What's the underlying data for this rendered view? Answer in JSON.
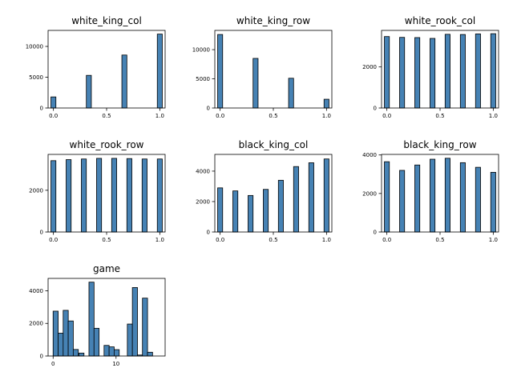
{
  "chart_data": [
    {
      "type": "bar",
      "title": "white_king_col",
      "xlim": [
        -0.05,
        1.05
      ],
      "ylim": [
        0,
        12600
      ],
      "xticks": [
        0.0,
        0.5,
        1.0
      ],
      "xtick_labels": [
        "0.0",
        "0.5",
        "1.0"
      ],
      "yticks": [
        0,
        5000,
        10000
      ],
      "ytick_labels": [
        "0",
        "5000",
        "10000"
      ],
      "bin_width": 0.047,
      "bars": [
        {
          "x": 0.0,
          "value": 1800
        },
        {
          "x": 0.333,
          "value": 5300
        },
        {
          "x": 0.667,
          "value": 8600
        },
        {
          "x": 1.0,
          "value": 12000
        }
      ]
    },
    {
      "type": "bar",
      "title": "white_king_row",
      "xlim": [
        -0.05,
        1.05
      ],
      "ylim": [
        0,
        13300
      ],
      "xticks": [
        0.0,
        0.5,
        1.0
      ],
      "xtick_labels": [
        "0.0",
        "0.5",
        "1.0"
      ],
      "yticks": [
        0,
        5000,
        10000
      ],
      "ytick_labels": [
        "0",
        "5000",
        "10000"
      ],
      "bin_width": 0.047,
      "bars": [
        {
          "x": 0.0,
          "value": 12600
        },
        {
          "x": 0.333,
          "value": 8500
        },
        {
          "x": 0.667,
          "value": 5100
        },
        {
          "x": 1.0,
          "value": 1500
        }
      ]
    },
    {
      "type": "bar",
      "title": "white_rook_col",
      "xlim": [
        -0.05,
        1.05
      ],
      "ylim": [
        0,
        3780
      ],
      "xticks": [
        0.0,
        0.5,
        1.0
      ],
      "xtick_labels": [
        "0.0",
        "0.5",
        "1.0"
      ],
      "yticks": [
        0,
        2000
      ],
      "ytick_labels": [
        "0",
        "2000"
      ],
      "bin_width": 0.047,
      "bars": [
        {
          "x": 0.0,
          "value": 3480
        },
        {
          "x": 0.143,
          "value": 3440
        },
        {
          "x": 0.286,
          "value": 3430
        },
        {
          "x": 0.429,
          "value": 3390
        },
        {
          "x": 0.571,
          "value": 3590
        },
        {
          "x": 0.714,
          "value": 3580
        },
        {
          "x": 0.857,
          "value": 3610
        },
        {
          "x": 1.0,
          "value": 3620
        }
      ]
    },
    {
      "type": "bar",
      "title": "white_rook_row",
      "xlim": [
        -0.05,
        1.05
      ],
      "ylim": [
        0,
        3720
      ],
      "xticks": [
        0.0,
        0.5,
        1.0
      ],
      "xtick_labels": [
        "0.0",
        "0.5",
        "1.0"
      ],
      "yticks": [
        0,
        2000
      ],
      "ytick_labels": [
        "0",
        "2000"
      ],
      "bin_width": 0.047,
      "bars": [
        {
          "x": 0.0,
          "value": 3420
        },
        {
          "x": 0.143,
          "value": 3470
        },
        {
          "x": 0.286,
          "value": 3500
        },
        {
          "x": 0.429,
          "value": 3530
        },
        {
          "x": 0.571,
          "value": 3530
        },
        {
          "x": 0.714,
          "value": 3520
        },
        {
          "x": 0.857,
          "value": 3500
        },
        {
          "x": 1.0,
          "value": 3500
        }
      ]
    },
    {
      "type": "bar",
      "title": "black_king_col",
      "xlim": [
        -0.05,
        1.05
      ],
      "ylim": [
        0,
        5100
      ],
      "xticks": [
        0.0,
        0.5,
        1.0
      ],
      "xtick_labels": [
        "0.0",
        "0.5",
        "1.0"
      ],
      "yticks": [
        0,
        2000,
        4000
      ],
      "ytick_labels": [
        "0",
        "2000",
        "4000"
      ],
      "bin_width": 0.047,
      "bars": [
        {
          "x": 0.0,
          "value": 2900
        },
        {
          "x": 0.143,
          "value": 2700
        },
        {
          "x": 0.286,
          "value": 2400
        },
        {
          "x": 0.429,
          "value": 2800
        },
        {
          "x": 0.571,
          "value": 3400
        },
        {
          "x": 0.714,
          "value": 4300
        },
        {
          "x": 0.857,
          "value": 4550
        },
        {
          "x": 1.0,
          "value": 4800
        }
      ]
    },
    {
      "type": "bar",
      "title": "black_king_row",
      "xlim": [
        -0.05,
        1.05
      ],
      "ylim": [
        0,
        4030
      ],
      "xticks": [
        0.0,
        0.5,
        1.0
      ],
      "xtick_labels": [
        "0.0",
        "0.5",
        "1.0"
      ],
      "yticks": [
        0,
        2000,
        4000
      ],
      "ytick_labels": [
        "0",
        "2000",
        "4000"
      ],
      "bin_width": 0.047,
      "bars": [
        {
          "x": 0.0,
          "value": 3650
        },
        {
          "x": 0.143,
          "value": 3200
        },
        {
          "x": 0.286,
          "value": 3480
        },
        {
          "x": 0.429,
          "value": 3780
        },
        {
          "x": 0.571,
          "value": 3830
        },
        {
          "x": 0.714,
          "value": 3600
        },
        {
          "x": 0.857,
          "value": 3360
        },
        {
          "x": 1.0,
          "value": 3100
        }
      ]
    },
    {
      "type": "bar",
      "title": "game",
      "xlim": [
        -0.8,
        17.8
      ],
      "ylim": [
        0,
        4760
      ],
      "xticks": [
        0,
        10
      ],
      "xtick_labels": [
        "0",
        "10"
      ],
      "yticks": [
        0,
        2000,
        4000
      ],
      "ytick_labels": [
        "0",
        "2000",
        "4000"
      ],
      "bin_width": 0.81,
      "bars": [
        {
          "x": 0.4,
          "value": 2750
        },
        {
          "x": 1.2,
          "value": 1400
        },
        {
          "x": 2.0,
          "value": 2800
        },
        {
          "x": 2.8,
          "value": 2150
        },
        {
          "x": 3.6,
          "value": 400
        },
        {
          "x": 4.5,
          "value": 180
        },
        {
          "x": 6.1,
          "value": 4530
        },
        {
          "x": 6.9,
          "value": 1700
        },
        {
          "x": 8.5,
          "value": 650
        },
        {
          "x": 9.3,
          "value": 560
        },
        {
          "x": 10.1,
          "value": 390
        },
        {
          "x": 12.2,
          "value": 1960
        },
        {
          "x": 13.0,
          "value": 4200
        },
        {
          "x": 13.8,
          "value": 60
        },
        {
          "x": 14.6,
          "value": 3550
        },
        {
          "x": 15.4,
          "value": 230
        }
      ]
    }
  ]
}
